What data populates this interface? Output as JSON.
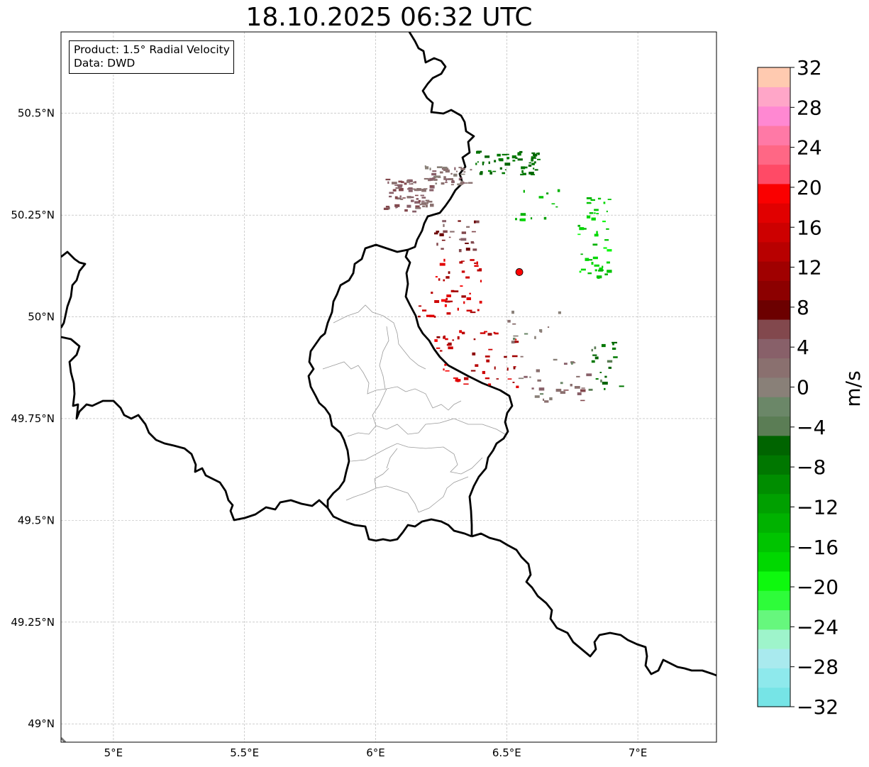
{
  "title": "18.10.2025 06:32 UTC",
  "infobox": {
    "product": "Product: 1.5° Radial Velocity",
    "data_source": "Data: DWD"
  },
  "axes": {
    "lon_range": [
      4.8,
      7.3
    ],
    "lat_range": [
      48.955,
      50.7
    ],
    "lon_ticks": [
      5.0,
      5.5,
      6.0,
      6.5,
      7.0
    ],
    "lon_tick_labels": [
      "5°E",
      "5.5°E",
      "6°E",
      "6.5°E",
      "7°E"
    ],
    "lat_ticks": [
      49.0,
      49.25,
      49.5,
      49.75,
      50.0,
      50.25,
      50.5
    ],
    "lat_tick_labels": [
      "49°N",
      "49.25°N",
      "49.5°N",
      "49.75°N",
      "50°N",
      "50.25°N",
      "50.5°N"
    ]
  },
  "radar_site": {
    "lon": 6.548,
    "lat": 50.11,
    "color": "#ff0000"
  },
  "colorbar": {
    "label": "m/s",
    "min": -32,
    "max": 32,
    "tick_values": [
      -32,
      -28,
      -24,
      -20,
      -16,
      -12,
      -8,
      -4,
      0,
      4,
      8,
      12,
      16,
      20,
      24,
      28,
      32
    ],
    "tick_labels": [
      "−32",
      "−28",
      "−24",
      "−20",
      "−16",
      "−12",
      "−8",
      "−4",
      "0",
      "4",
      "8",
      "12",
      "16",
      "20",
      "24",
      "28",
      "32"
    ],
    "colors": [
      "#76e4e6",
      "#8ee9ec",
      "#a9eaee",
      "#9ef4cb",
      "#66f77d",
      "#2efc3a",
      "#0ef90e",
      "#00d800",
      "#00c400",
      "#00b200",
      "#00a000",
      "#008d00",
      "#007700",
      "#006400",
      "#5b7d55",
      "#6b8768",
      "#898078",
      "#8a706f",
      "#886069",
      "#82484d",
      "#6c0000",
      "#8c0000",
      "#a00000",
      "#b80000",
      "#cd0000",
      "#e10000",
      "#fa0000",
      "#ff4a66",
      "#ff6785",
      "#ff79a6",
      "#ff88d2",
      "#ffa6c8",
      "#ffcab0"
    ]
  },
  "velocity_clusters": [
    {
      "lon": 6.12,
      "lat": 50.3,
      "spread": [
        0.09,
        0.04
      ],
      "count": 70,
      "v": [
        1,
        6
      ]
    },
    {
      "lon": 6.27,
      "lat": 50.35,
      "spread": [
        0.09,
        0.025
      ],
      "count": 45,
      "v": [
        0,
        4
      ]
    },
    {
      "lon": 6.5,
      "lat": 50.38,
      "spread": [
        0.12,
        0.03
      ],
      "count": 55,
      "v": [
        -9,
        -5
      ]
    },
    {
      "lon": 6.3,
      "lat": 50.2,
      "spread": [
        0.08,
        0.04
      ],
      "count": 25,
      "v": [
        2,
        10
      ]
    },
    {
      "lon": 6.83,
      "lat": 50.2,
      "spread": [
        0.06,
        0.1
      ],
      "count": 45,
      "v": [
        -19,
        -14
      ]
    },
    {
      "lon": 6.62,
      "lat": 50.28,
      "spread": [
        0.1,
        0.04
      ],
      "count": 12,
      "v": [
        -17,
        -12
      ]
    },
    {
      "lon": 6.28,
      "lat": 50.08,
      "spread": [
        0.12,
        0.08
      ],
      "count": 45,
      "v": [
        10,
        19
      ]
    },
    {
      "lon": 6.38,
      "lat": 49.9,
      "spread": [
        0.16,
        0.07
      ],
      "count": 50,
      "v": [
        10,
        19
      ]
    },
    {
      "lon": 6.68,
      "lat": 49.85,
      "spread": [
        0.14,
        0.06
      ],
      "count": 30,
      "v": [
        -2,
        6
      ]
    },
    {
      "lon": 6.85,
      "lat": 49.88,
      "spread": [
        0.08,
        0.06
      ],
      "count": 20,
      "v": [
        -8,
        -3
      ]
    },
    {
      "lon": 6.6,
      "lat": 49.98,
      "spread": [
        0.1,
        0.05
      ],
      "count": 12,
      "v": [
        -2,
        3
      ]
    }
  ]
}
